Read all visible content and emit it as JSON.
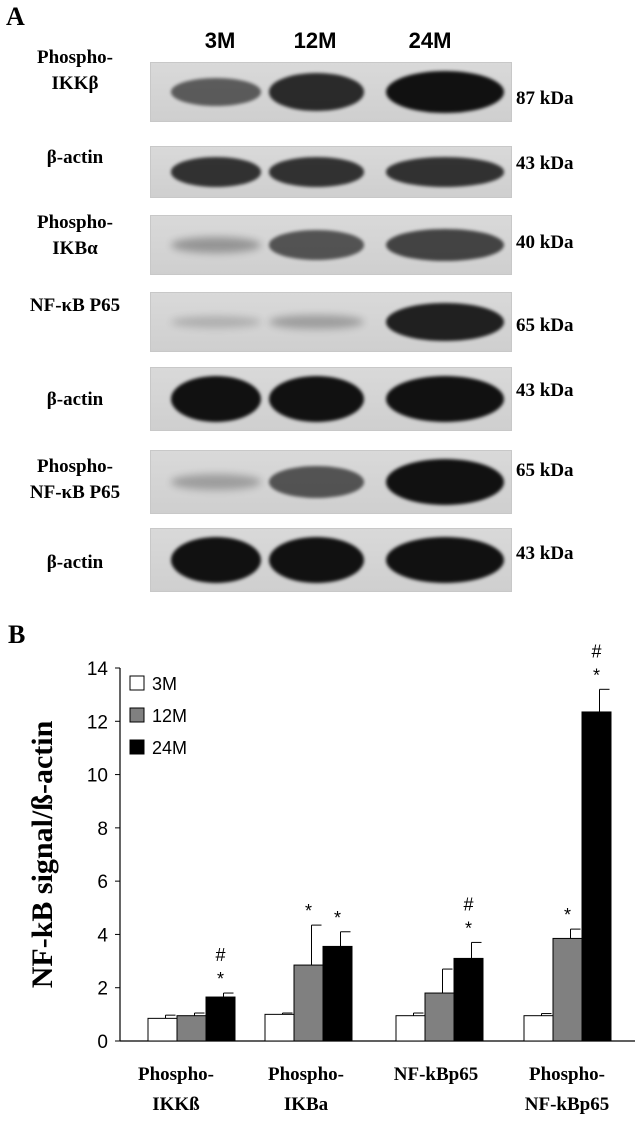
{
  "panel_a": {
    "letter": "A",
    "lanes": [
      "3M",
      "12M",
      "24M"
    ],
    "blots": [
      {
        "label": "Phospho-\nIKKβ",
        "kda": "87 kDa",
        "intensity": [
          0.55,
          0.85,
          1.0
        ]
      },
      {
        "label": "β-actin",
        "kda": "43 kDa",
        "intensity": [
          0.8,
          0.8,
          0.8
        ]
      },
      {
        "label": "Phospho-\nIKBα",
        "kda": "40 kDa",
        "intensity": [
          0.2,
          0.6,
          0.7
        ]
      },
      {
        "label": "NF-κB P65",
        "kda": "65 kDa",
        "intensity": [
          0.05,
          0.15,
          0.9
        ]
      },
      {
        "label": "β-actin",
        "kda": "43 kDa",
        "intensity": [
          1.0,
          1.0,
          1.0
        ]
      },
      {
        "label": "Phospho-\nNF-κB P65",
        "kda": "65 kDa",
        "intensity": [
          0.15,
          0.6,
          1.0
        ]
      },
      {
        "label": "β-actin",
        "kda": "43 kDa",
        "intensity": [
          1.0,
          1.0,
          1.0
        ]
      }
    ]
  },
  "panel_b": {
    "letter": "B"
  },
  "chart_data": {
    "type": "bar",
    "title": "",
    "xlabel": "",
    "ylabel": "NF-kB signal/ß-actin",
    "ylim": [
      0,
      14
    ],
    "yticks": [
      "0",
      "2",
      "4",
      "6",
      "8",
      "10",
      "12",
      "14"
    ],
    "categories": [
      "Phospho-\nIKKß",
      "Phospho-\nIKBa",
      "NF-kBp65",
      "Phospho-\nNF-kBp65"
    ],
    "series": [
      {
        "name": "3M",
        "color": "#ffffff",
        "values": [
          0.85,
          1.0,
          0.95,
          0.95
        ],
        "errors": [
          0.12,
          0.05,
          0.1,
          0.08
        ]
      },
      {
        "name": "12M",
        "color": "#808080",
        "values": [
          0.95,
          2.85,
          1.8,
          3.85
        ],
        "errors": [
          0.1,
          1.5,
          0.9,
          0.35
        ]
      },
      {
        "name": "24M",
        "color": "#000000",
        "values": [
          1.65,
          3.55,
          3.1,
          12.35
        ],
        "errors": [
          0.15,
          0.55,
          0.6,
          0.85
        ]
      }
    ],
    "annotations": [
      {
        "series": 1,
        "category": 1,
        "text": "*"
      },
      {
        "series": 1,
        "category": 3,
        "text": "*"
      },
      {
        "series": 2,
        "category": 0,
        "text": "*"
      },
      {
        "series": 2,
        "category": 0,
        "text": "#"
      },
      {
        "series": 2,
        "category": 1,
        "text": "*"
      },
      {
        "series": 2,
        "category": 2,
        "text": "*"
      },
      {
        "series": 2,
        "category": 2,
        "text": "#"
      },
      {
        "series": 2,
        "category": 3,
        "text": "*"
      },
      {
        "series": 2,
        "category": 3,
        "text": "#"
      }
    ]
  }
}
